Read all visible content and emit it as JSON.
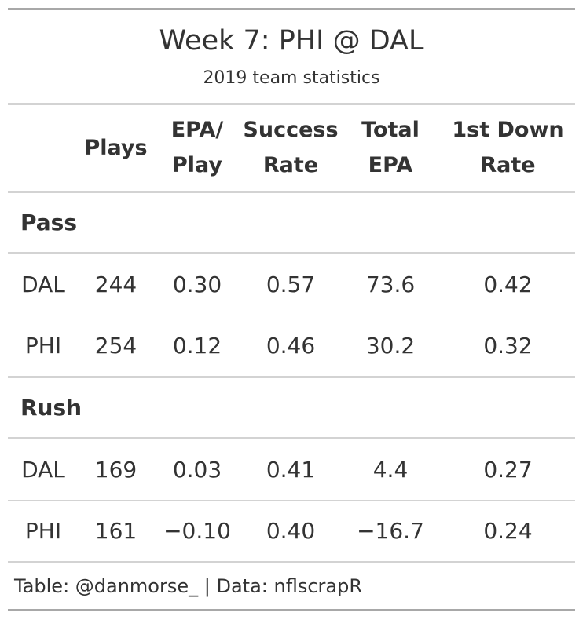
{
  "header": {
    "title": "Week 7: PHI @ DAL",
    "subtitle": "2019 team statistics"
  },
  "chart_data": {
    "type": "table",
    "columns": [
      {
        "key": "team",
        "label_lines": [
          "",
          ""
        ]
      },
      {
        "key": "plays",
        "label_lines": [
          "Plays"
        ]
      },
      {
        "key": "epa_play",
        "label_lines": [
          "EPA/",
          "Play"
        ]
      },
      {
        "key": "success_rate",
        "label_lines": [
          "Success",
          "Rate"
        ]
      },
      {
        "key": "total_epa",
        "label_lines": [
          "Total",
          "EPA"
        ]
      },
      {
        "key": "first_down_rate",
        "label_lines": [
          "1st Down",
          "Rate"
        ]
      }
    ],
    "groups": [
      {
        "label": "Pass",
        "rows": [
          {
            "team": "DAL",
            "plays": "244",
            "epa_play": "0.30",
            "success_rate": "0.57",
            "total_epa": "73.6",
            "first_down_rate": "0.42"
          },
          {
            "team": "PHI",
            "plays": "254",
            "epa_play": "0.12",
            "success_rate": "0.46",
            "total_epa": "30.2",
            "first_down_rate": "0.32"
          }
        ]
      },
      {
        "label": "Rush",
        "rows": [
          {
            "team": "DAL",
            "plays": "169",
            "epa_play": "0.03",
            "success_rate": "0.41",
            "total_epa": "4.4",
            "first_down_rate": "0.27"
          },
          {
            "team": "PHI",
            "plays": "161",
            "epa_play": "−0.10",
            "success_rate": "0.40",
            "total_epa": "−16.7",
            "first_down_rate": "0.24"
          }
        ]
      }
    ]
  },
  "footer": {
    "source": "Table: @danmorse_ | Data: nflscrapR"
  }
}
